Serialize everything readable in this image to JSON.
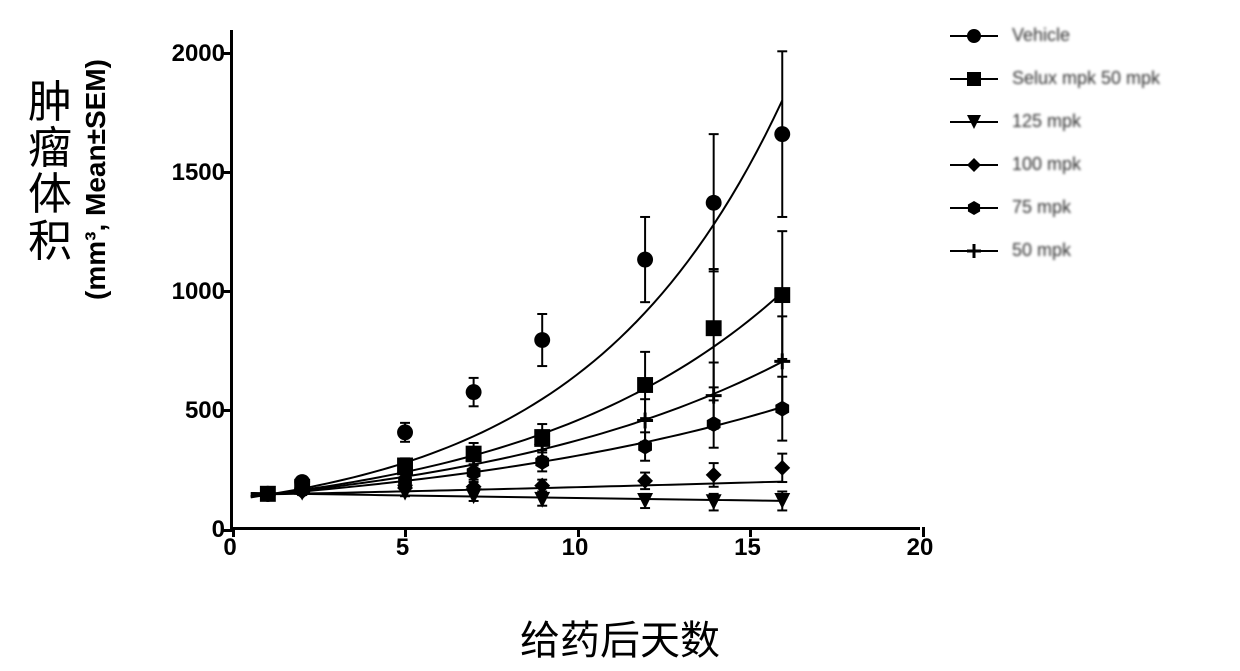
{
  "axes": {
    "x": {
      "label": "给药后天数",
      "min": 0,
      "max": 20,
      "ticks": [
        0,
        5,
        10,
        15,
        20
      ],
      "tick_fontsize": 24
    },
    "y": {
      "label_cn": "肿瘤体积",
      "label_unit": "(mm³, Mean±SEM)",
      "min": 0,
      "max": 2100,
      "ticks": [
        0,
        500,
        1000,
        1500,
        2000
      ],
      "tick_fontsize": 24
    },
    "label_fontsize_cn": 44,
    "label_fontsize_unit": 28,
    "xlabel_fontsize": 40
  },
  "plot": {
    "background": "#ffffff",
    "axis_color": "#000000",
    "line_width": 2,
    "marker_size": 8
  },
  "legend": {
    "fontsize": 18,
    "items": [
      {
        "label": "Vehicle",
        "marker": "circle"
      },
      {
        "label": "Selux mpk 50 mpk",
        "marker": "square"
      },
      {
        "label": "125 mpk",
        "marker": "triangle-down"
      },
      {
        "label": "100 mpk",
        "marker": "diamond"
      },
      {
        "label": "75 mpk",
        "marker": "hexagon"
      },
      {
        "label": "50 mpk",
        "marker": "plus"
      }
    ]
  },
  "xpoints": [
    1,
    2,
    5,
    7,
    9,
    12,
    14,
    16
  ],
  "series": [
    {
      "name": "vehicle",
      "marker": "circle",
      "color": "#000000",
      "y": [
        140,
        190,
        400,
        570,
        790,
        1130,
        1370,
        1660
      ],
      "err": [
        0,
        20,
        40,
        60,
        110,
        180,
        290,
        350
      ],
      "curve": {
        "a": 115,
        "k": 0.172
      }
    },
    {
      "name": "selux-50",
      "marker": "square",
      "color": "#000000",
      "y": [
        140,
        170,
        260,
        310,
        380,
        600,
        840,
        980
      ],
      "err": [
        0,
        15,
        30,
        45,
        55,
        140,
        250,
        270
      ],
      "curve": {
        "a": 120,
        "k": 0.132
      }
    },
    {
      "name": "125mpk",
      "marker": "triangle-down",
      "color": "#000000",
      "y": [
        140,
        145,
        145,
        130,
        115,
        110,
        105,
        110
      ],
      "err": [
        0,
        10,
        15,
        20,
        25,
        30,
        35,
        40
      ],
      "curve": {
        "a": 145,
        "k": -0.017
      }
    },
    {
      "name": "100mpk",
      "marker": "diamond",
      "color": "#000000",
      "y": [
        140,
        150,
        165,
        170,
        175,
        195,
        220,
        250
      ],
      "err": [
        0,
        10,
        15,
        20,
        25,
        35,
        50,
        60
      ],
      "curve": {
        "a": 135,
        "k": 0.022
      }
    },
    {
      "name": "75mpk",
      "marker": "hexagon",
      "color": "#000000",
      "y": [
        140,
        155,
        195,
        230,
        275,
        340,
        435,
        500
      ],
      "err": [
        0,
        12,
        20,
        30,
        40,
        60,
        100,
        135
      ],
      "curve": {
        "a": 126,
        "k": 0.087
      }
    },
    {
      "name": "50mpk",
      "marker": "plus",
      "color": "#000000",
      "y": [
        140,
        160,
        225,
        280,
        345,
        450,
        555,
        700
      ],
      "err": [
        0,
        14,
        25,
        38,
        48,
        90,
        140,
        190
      ],
      "curve": {
        "a": 124,
        "k": 0.108
      }
    }
  ]
}
